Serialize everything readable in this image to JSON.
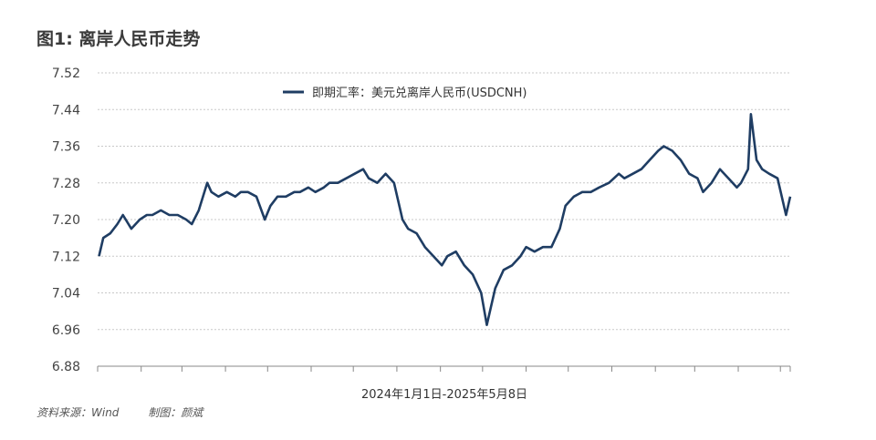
{
  "figure_title": "图1: 离岸人民币走势",
  "source_text": "资料来源：Wind",
  "author_text": "制图：颜斌",
  "colors": {
    "line": "#1f3d63",
    "grid": "#c8c8c8",
    "axis": "#888888",
    "text": "#444444"
  },
  "chart_data": {
    "type": "line",
    "title": "图1: 离岸人民币走势",
    "xlabel": "2024年1月1日-2025年5月8日",
    "ylabel": "",
    "x_range": [
      "2024-01-01",
      "2025-05-08"
    ],
    "ylim": [
      6.88,
      7.52
    ],
    "yticks": [
      "6.88",
      "6.96",
      "7.04",
      "7.12",
      "7.20",
      "7.28",
      "7.36",
      "7.44",
      "7.52"
    ],
    "grid": true,
    "legend_position": "top-center",
    "series": [
      {
        "name": "即期汇率：美元兑离岸人民币(USDCNH)",
        "x": [
          "2024-01-02",
          "2024-01-05",
          "2024-01-10",
          "2024-01-15",
          "2024-01-19",
          "2024-01-25",
          "2024-01-31",
          "2024-02-05",
          "2024-02-09",
          "2024-02-15",
          "2024-02-21",
          "2024-02-27",
          "2024-03-04",
          "2024-03-08",
          "2024-03-13",
          "2024-03-19",
          "2024-03-22",
          "2024-03-27",
          "2024-04-02",
          "2024-04-08",
          "2024-04-12",
          "2024-04-17",
          "2024-04-23",
          "2024-04-29",
          "2024-05-03",
          "2024-05-08",
          "2024-05-14",
          "2024-05-20",
          "2024-05-24",
          "2024-05-30",
          "2024-06-04",
          "2024-06-10",
          "2024-06-14",
          "2024-06-20",
          "2024-06-26",
          "2024-07-02",
          "2024-07-08",
          "2024-07-12",
          "2024-07-18",
          "2024-07-24",
          "2024-07-30",
          "2024-08-05",
          "2024-08-09",
          "2024-08-15",
          "2024-08-21",
          "2024-08-27",
          "2024-09-02",
          "2024-09-06",
          "2024-09-12",
          "2024-09-18",
          "2024-09-24",
          "2024-09-30",
          "2024-10-04",
          "2024-10-10",
          "2024-10-16",
          "2024-10-22",
          "2024-10-28",
          "2024-11-01",
          "2024-11-07",
          "2024-11-13",
          "2024-11-19",
          "2024-11-25",
          "2024-11-29",
          "2024-12-05",
          "2024-12-11",
          "2024-12-17",
          "2024-12-23",
          "2024-12-30",
          "2025-01-06",
          "2025-01-10",
          "2025-01-16",
          "2025-01-22",
          "2025-01-28",
          "2025-02-03",
          "2025-02-07",
          "2025-02-13",
          "2025-02-19",
          "2025-02-25",
          "2025-03-03",
          "2025-03-07",
          "2025-03-13",
          "2025-03-19",
          "2025-03-25",
          "2025-03-31",
          "2025-04-03",
          "2025-04-08",
          "2025-04-10",
          "2025-04-14",
          "2025-04-18",
          "2025-04-23",
          "2025-04-29",
          "2025-05-05",
          "2025-05-08"
        ],
        "values": [
          7.12,
          7.16,
          7.17,
          7.19,
          7.21,
          7.18,
          7.2,
          7.21,
          7.21,
          7.22,
          7.21,
          7.21,
          7.2,
          7.19,
          7.22,
          7.28,
          7.26,
          7.25,
          7.26,
          7.25,
          7.26,
          7.26,
          7.25,
          7.2,
          7.23,
          7.25,
          7.25,
          7.26,
          7.26,
          7.27,
          7.26,
          7.27,
          7.28,
          7.28,
          7.29,
          7.3,
          7.31,
          7.29,
          7.28,
          7.3,
          7.28,
          7.2,
          7.18,
          7.17,
          7.14,
          7.12,
          7.1,
          7.12,
          7.13,
          7.1,
          7.08,
          7.04,
          6.97,
          7.05,
          7.09,
          7.1,
          7.12,
          7.14,
          7.13,
          7.14,
          7.14,
          7.18,
          7.23,
          7.25,
          7.26,
          7.26,
          7.27,
          7.28,
          7.3,
          7.29,
          7.3,
          7.31,
          7.33,
          7.35,
          7.36,
          7.35,
          7.33,
          7.3,
          7.29,
          7.26,
          7.28,
          7.31,
          7.29,
          7.27,
          7.28,
          7.31,
          7.43,
          7.33,
          7.31,
          7.3,
          7.29,
          7.21,
          7.25
        ]
      }
    ]
  }
}
